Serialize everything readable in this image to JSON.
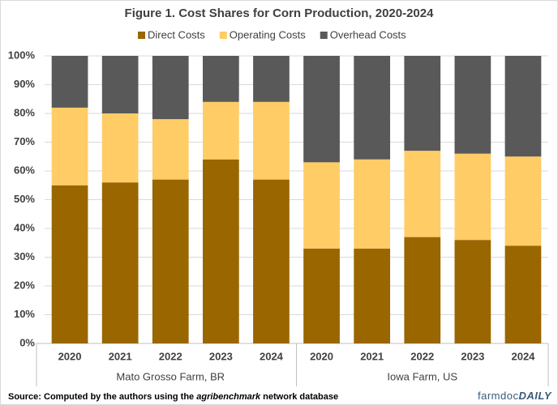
{
  "chart_data": {
    "type": "stacked_bar",
    "title": "Figure  1. Cost Shares for Corn Production,  2020-2024",
    "groups": [
      {
        "label": "Mato Grosso Farm, BR",
        "categories": [
          "2020",
          "2021",
          "2022",
          "2023",
          "2024"
        ]
      },
      {
        "label": "Iowa Farm, US",
        "categories": [
          "2020",
          "2021",
          "2022",
          "2023",
          "2024"
        ]
      }
    ],
    "series": [
      {
        "name": "Direct Costs",
        "color": "#996600",
        "values": [
          55,
          56,
          57,
          64,
          57,
          33,
          33,
          37,
          36,
          34
        ]
      },
      {
        "name": "Operating Costs",
        "color": "#ffcc66",
        "values": [
          27,
          24,
          21,
          20,
          27,
          30,
          31,
          30,
          30,
          31
        ]
      },
      {
        "name": "Overhead Costs",
        "color": "#595959",
        "values": [
          18,
          20,
          22,
          16,
          16,
          37,
          36,
          33,
          34,
          35
        ]
      }
    ],
    "ylim": [
      0,
      100
    ],
    "yticks": [
      {
        "value": 0,
        "label": "0%"
      },
      {
        "value": 10,
        "label": "10%"
      },
      {
        "value": 20,
        "label": "20%"
      },
      {
        "value": 30,
        "label": "30%"
      },
      {
        "value": 40,
        "label": "40%"
      },
      {
        "value": 50,
        "label": "50%"
      },
      {
        "value": 60,
        "label": "60%"
      },
      {
        "value": 70,
        "label": "70%"
      },
      {
        "value": 80,
        "label": "80%"
      },
      {
        "value": 90,
        "label": "90%"
      },
      {
        "value": 100,
        "label": "100%"
      }
    ],
    "grid": true,
    "legend": "top",
    "source": [
      "Source: Computed by the authors using the ",
      "agribenchmark",
      " network database"
    ],
    "logo": [
      "farmdoc",
      "DAILY"
    ]
  }
}
